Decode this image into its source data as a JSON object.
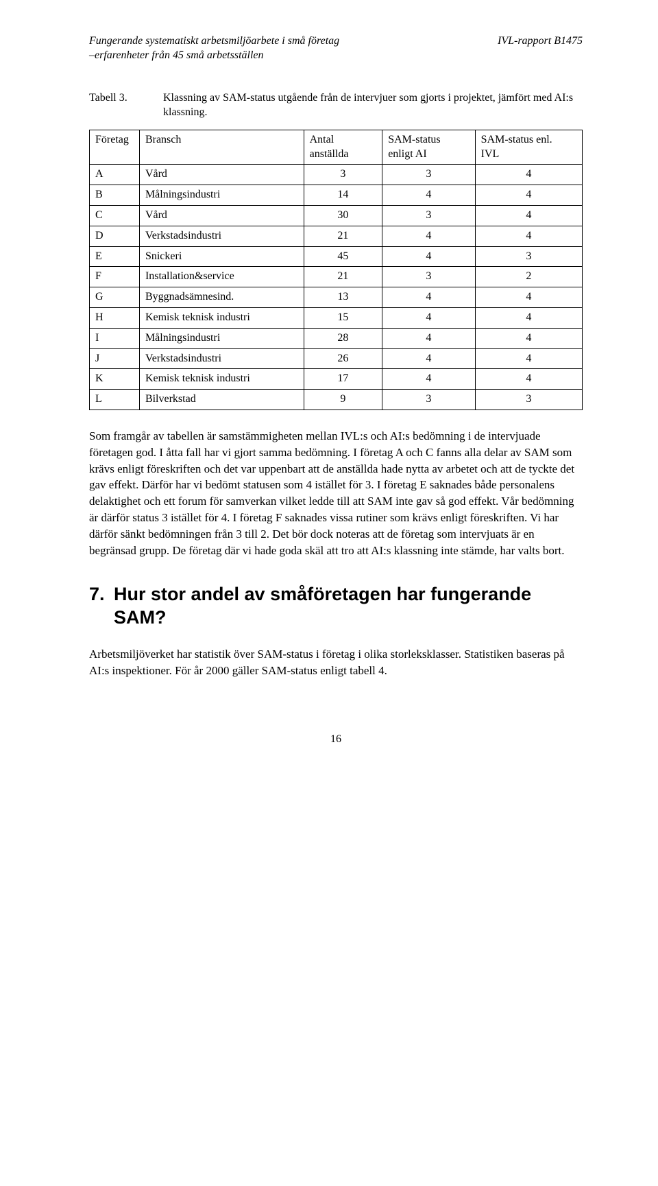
{
  "header": {
    "left_line1": "Fungerande systematiskt arbetsmiljöarbete i små företag",
    "left_line2": "–erfarenheter från 45 små arbetsställen",
    "right": "IVL-rapport  B1475"
  },
  "table": {
    "caption_label": "Tabell 3.",
    "caption_text": "Klassning av SAM-status utgående från de intervjuer som gjorts i projektet, jämfört med AI:s klassning.",
    "columns": {
      "c1": "Företag",
      "c2": "Bransch",
      "c3_line1": "Antal",
      "c3_line2": "anställda",
      "c4_line1": "SAM-status",
      "c4_line2": "enligt AI",
      "c5_line1": "SAM-status enl.",
      "c5_line2": "IVL"
    },
    "rows": [
      {
        "c1": "A",
        "c2": "Vård",
        "c3": "3",
        "c4": "3",
        "c5": "4"
      },
      {
        "c1": "B",
        "c2": "Målningsindustri",
        "c3": "14",
        "c4": "4",
        "c5": "4"
      },
      {
        "c1": "C",
        "c2": "Vård",
        "c3": "30",
        "c4": "3",
        "c5": "4"
      },
      {
        "c1": "D",
        "c2": "Verkstadsindustri",
        "c3": "21",
        "c4": "4",
        "c5": "4"
      },
      {
        "c1": "E",
        "c2": "Snickeri",
        "c3": "45",
        "c4": "4",
        "c5": "3"
      },
      {
        "c1": "F",
        "c2": "Installation&service",
        "c3": "21",
        "c4": "3",
        "c5": "2"
      },
      {
        "c1": "G",
        "c2": "Byggnadsämnesind.",
        "c3": "13",
        "c4": "4",
        "c5": "4"
      },
      {
        "c1": "H",
        "c2": "Kemisk teknisk industri",
        "c3": "15",
        "c4": "4",
        "c5": "4"
      },
      {
        "c1": "I",
        "c2": "Målningsindustri",
        "c3": "28",
        "c4": "4",
        "c5": "4"
      },
      {
        "c1": "J",
        "c2": "Verkstadsindustri",
        "c3": "26",
        "c4": "4",
        "c5": "4"
      },
      {
        "c1": "K",
        "c2": "Kemisk teknisk industri",
        "c3": "17",
        "c4": "4",
        "c5": "4"
      },
      {
        "c1": "L",
        "c2": "Bilverkstad",
        "c3": "9",
        "c4": "3",
        "c5": "3"
      }
    ],
    "col_widths": [
      "70px",
      "230px",
      "110px",
      "130px",
      "150px"
    ],
    "border_color": "#000000",
    "background_color": "#ffffff",
    "font_size_pt": 12
  },
  "paragraphs": {
    "p1": "Som framgår av tabellen är samstämmigheten mellan IVL:s och AI:s bedömning i de intervjuade företagen god. I åtta fall har vi gjort samma bedömning. I företag A och C fanns alla delar av SAM som krävs enligt föreskriften och det var uppenbart att de anställda hade nytta av arbetet och att de tyckte det gav effekt. Därför har vi bedömt statusen som 4 istället för 3. I företag E saknades både personalens delaktighet och ett forum för samverkan vilket ledde till att SAM inte gav så god effekt. Vår bedömning är därför status 3 istället för 4. I företag F saknades vissa rutiner som krävs enligt föreskriften. Vi har därför sänkt bedömningen från 3 till 2. Det bör dock noteras att de företag som intervjuats är en begränsad grupp. De företag där vi hade goda skäl att tro att AI:s klassning inte stämde, har valts bort.",
    "p2": "Arbetsmiljöverket har statistik över SAM-status i företag i olika storleksklasser. Statistiken baseras på AI:s inspektioner. För år 2000 gäller SAM-status enligt tabell 4."
  },
  "heading": {
    "number": "7.",
    "text": "Hur stor andel av småföretagen har fungerande SAM?"
  },
  "page_number": "16",
  "styling": {
    "body_font": "Times New Roman",
    "heading_font": "Arial",
    "text_color": "#000000",
    "background_color": "#ffffff",
    "body_font_size_pt": 12,
    "heading_font_size_pt": 20
  }
}
